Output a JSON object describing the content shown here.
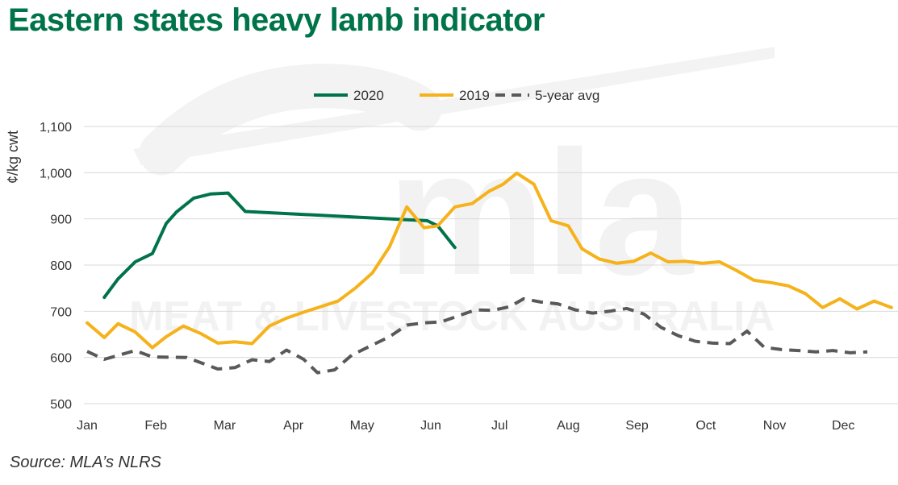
{
  "title": "Eastern states heavy lamb indicator",
  "source": "Source: MLA’s NLRS",
  "watermark": {
    "logo": "mla",
    "tagline": "MEAT & LIVESTOCK AUSTRALIA"
  },
  "colors": {
    "title": "#00734a",
    "series_2020": "#00734a",
    "series_2019": "#f5b21b",
    "series_avg": "#595959",
    "grid": "#d9d9d9"
  },
  "chart_data": {
    "type": "line",
    "title": "Eastern states heavy lamb indicator",
    "ylabel": "¢/kg cwt",
    "xlabel": "",
    "ylim": [
      500,
      1100
    ],
    "yticks": [
      500,
      600,
      700,
      800,
      900,
      1000,
      1100
    ],
    "ytick_labels": [
      "500",
      "600",
      "700",
      "800",
      "900",
      "1,000",
      "1,100"
    ],
    "months": [
      "Jan",
      "Feb",
      "Mar",
      "Apr",
      "May",
      "Jun",
      "Jul",
      "Aug",
      "Sep",
      "Oct",
      "Nov",
      "Dec"
    ],
    "grid": true,
    "legend_position": "top",
    "series": [
      {
        "name": "2020",
        "color": "#00734a",
        "dash": false,
        "points": [
          [
            0.25,
            730
          ],
          [
            0.45,
            770
          ],
          [
            0.7,
            807
          ],
          [
            0.95,
            825
          ],
          [
            1.15,
            890
          ],
          [
            1.3,
            915
          ],
          [
            1.55,
            945
          ],
          [
            1.8,
            954
          ],
          [
            2.05,
            956
          ],
          [
            2.3,
            916
          ],
          [
            4.95,
            896
          ],
          [
            5.1,
            885
          ],
          [
            5.35,
            838
          ]
        ]
      },
      {
        "name": "2019",
        "color": "#f5b21b",
        "dash": false,
        "points": [
          [
            0.0,
            675
          ],
          [
            0.25,
            643
          ],
          [
            0.45,
            673
          ],
          [
            0.7,
            655
          ],
          [
            0.95,
            621
          ],
          [
            1.15,
            645
          ],
          [
            1.4,
            668
          ],
          [
            1.65,
            652
          ],
          [
            1.9,
            631
          ],
          [
            2.15,
            634
          ],
          [
            2.4,
            630
          ],
          [
            2.65,
            668
          ],
          [
            2.9,
            685
          ],
          [
            3.15,
            698
          ],
          [
            3.4,
            710
          ],
          [
            3.65,
            722
          ],
          [
            3.9,
            750
          ],
          [
            4.15,
            783
          ],
          [
            4.4,
            840
          ],
          [
            4.65,
            926
          ],
          [
            4.9,
            881
          ],
          [
            5.1,
            885
          ],
          [
            5.35,
            926
          ],
          [
            5.6,
            933
          ],
          [
            5.85,
            960
          ],
          [
            6.05,
            975
          ],
          [
            6.25,
            999
          ],
          [
            6.5,
            975
          ],
          [
            6.75,
            896
          ],
          [
            7.0,
            885
          ],
          [
            7.2,
            835
          ],
          [
            7.45,
            813
          ],
          [
            7.7,
            804
          ],
          [
            7.95,
            808
          ],
          [
            8.2,
            826
          ],
          [
            8.45,
            807
          ],
          [
            8.7,
            808
          ],
          [
            8.95,
            804
          ],
          [
            9.2,
            807
          ],
          [
            9.45,
            788
          ],
          [
            9.7,
            767
          ],
          [
            9.95,
            762
          ],
          [
            10.2,
            755
          ],
          [
            10.45,
            738
          ],
          [
            10.7,
            708
          ],
          [
            10.95,
            727
          ],
          [
            11.2,
            705
          ],
          [
            11.45,
            722
          ],
          [
            11.7,
            708
          ]
        ]
      },
      {
        "name": "5-year avg",
        "color": "#595959",
        "dash": true,
        "points": [
          [
            0.0,
            613
          ],
          [
            0.25,
            596
          ],
          [
            0.7,
            615
          ],
          [
            0.95,
            601
          ],
          [
            1.45,
            600
          ],
          [
            1.9,
            575
          ],
          [
            2.15,
            578
          ],
          [
            2.4,
            595
          ],
          [
            2.65,
            591
          ],
          [
            2.9,
            616
          ],
          [
            3.15,
            596
          ],
          [
            3.35,
            567
          ],
          [
            3.6,
            573
          ],
          [
            3.85,
            605
          ],
          [
            4.15,
            627
          ],
          [
            4.4,
            645
          ],
          [
            4.65,
            670
          ],
          [
            4.9,
            675
          ],
          [
            5.15,
            677
          ],
          [
            5.4,
            690
          ],
          [
            5.65,
            703
          ],
          [
            5.9,
            702
          ],
          [
            6.15,
            710
          ],
          [
            6.35,
            727
          ],
          [
            6.6,
            720
          ],
          [
            6.85,
            716
          ],
          [
            7.1,
            703
          ],
          [
            7.35,
            696
          ],
          [
            7.6,
            700
          ],
          [
            7.85,
            706
          ],
          [
            8.1,
            694
          ],
          [
            8.35,
            665
          ],
          [
            8.6,
            647
          ],
          [
            8.85,
            635
          ],
          [
            9.1,
            631
          ],
          [
            9.35,
            630
          ],
          [
            9.6,
            657
          ],
          [
            9.85,
            622
          ],
          [
            10.1,
            617
          ],
          [
            10.35,
            615
          ],
          [
            10.6,
            612
          ],
          [
            10.85,
            615
          ],
          [
            11.1,
            610
          ],
          [
            11.35,
            612
          ]
        ]
      }
    ]
  }
}
